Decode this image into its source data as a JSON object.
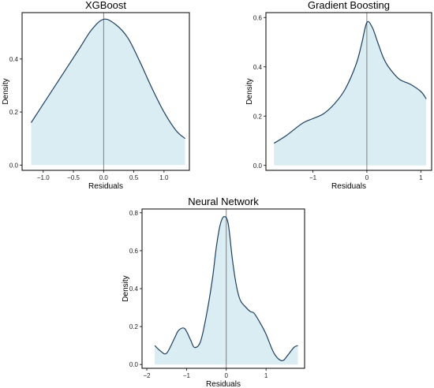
{
  "chart_data": [
    {
      "type": "area",
      "title": "XGBoost",
      "xlabel": "Residuals",
      "ylabel": "Density",
      "xlim": [
        -1.35,
        1.42
      ],
      "ylim": [
        -0.02,
        0.575
      ],
      "xticks": [
        -1.0,
        -0.5,
        0.0,
        0.5,
        1.0
      ],
      "xtick_labels": [
        "−1.0",
        "−0.5",
        "0.0",
        "0.5",
        "1.0"
      ],
      "yticks": [
        0.0,
        0.2,
        0.4
      ],
      "ytick_labels": [
        "0.0",
        "0.2",
        "0.4"
      ],
      "vline_x": 0,
      "x": [
        -1.2,
        -1.0,
        -0.8,
        -0.6,
        -0.4,
        -0.2,
        0.0,
        0.2,
        0.4,
        0.6,
        0.8,
        1.0,
        1.2,
        1.35
      ],
      "y": [
        0.16,
        0.23,
        0.3,
        0.37,
        0.44,
        0.51,
        0.55,
        0.53,
        0.48,
        0.39,
        0.29,
        0.2,
        0.13,
        0.1
      ]
    },
    {
      "type": "area",
      "title": "Gradient Boosting",
      "xlabel": "Residuals",
      "ylabel": "Density",
      "xlim": [
        -1.87,
        1.2
      ],
      "ylim": [
        -0.02,
        0.62
      ],
      "xticks": [
        -1,
        0,
        1
      ],
      "xtick_labels": [
        "−1",
        "0",
        "1"
      ],
      "yticks": [
        0.0,
        0.2,
        0.4,
        0.6
      ],
      "ytick_labels": [
        "0.0",
        "0.2",
        "0.4",
        "0.6"
      ],
      "vline_x": 0,
      "x": [
        -1.72,
        -1.5,
        -1.2,
        -1.0,
        -0.8,
        -0.6,
        -0.4,
        -0.2,
        -0.1,
        0.0,
        0.1,
        0.2,
        0.3,
        0.4,
        0.6,
        0.8,
        1.0,
        1.1
      ],
      "y": [
        0.09,
        0.12,
        0.17,
        0.19,
        0.21,
        0.25,
        0.31,
        0.41,
        0.49,
        0.58,
        0.56,
        0.5,
        0.44,
        0.4,
        0.35,
        0.33,
        0.3,
        0.27
      ]
    },
    {
      "type": "area",
      "title": "Neural Network",
      "xlabel": "Residuals",
      "ylabel": "Density",
      "xlim": [
        -2.12,
        1.97
      ],
      "ylim": [
        -0.02,
        0.82
      ],
      "xticks": [
        -2,
        -1,
        0,
        1
      ],
      "xtick_labels": [
        "−2",
        "−1",
        "0",
        "1"
      ],
      "yticks": [
        0.0,
        0.2,
        0.4,
        0.6,
        0.8
      ],
      "ytick_labels": [
        "0.0",
        "0.2",
        "0.4",
        "0.6",
        "0.8"
      ],
      "vline_x": 0,
      "x": [
        -1.8,
        -1.65,
        -1.5,
        -1.3,
        -1.2,
        -1.05,
        -0.9,
        -0.8,
        -0.65,
        -0.5,
        -0.35,
        -0.25,
        -0.15,
        -0.05,
        0.05,
        0.15,
        0.25,
        0.35,
        0.5,
        0.6,
        0.7,
        0.85,
        1.0,
        1.2,
        1.4,
        1.55,
        1.7,
        1.8
      ],
      "y": [
        0.1,
        0.07,
        0.06,
        0.14,
        0.18,
        0.19,
        0.13,
        0.09,
        0.12,
        0.26,
        0.45,
        0.62,
        0.74,
        0.78,
        0.74,
        0.56,
        0.42,
        0.34,
        0.3,
        0.28,
        0.27,
        0.22,
        0.16,
        0.06,
        0.02,
        0.05,
        0.09,
        0.1
      ]
    }
  ]
}
